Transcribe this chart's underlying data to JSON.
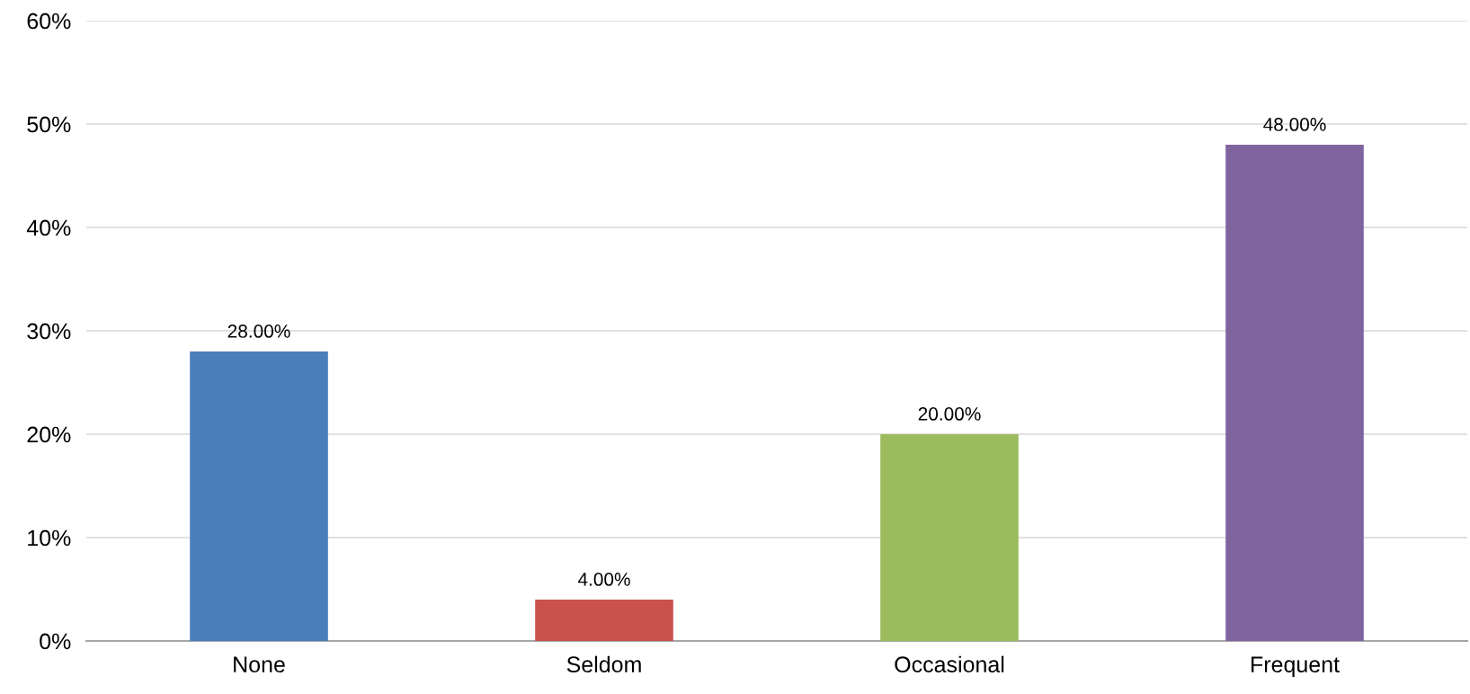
{
  "chart_data": {
    "type": "bar",
    "categories": [
      "None",
      "Seldom",
      "Occasional",
      "Frequent"
    ],
    "values": [
      28,
      4,
      20,
      48
    ],
    "colors": [
      "#4a7ebb",
      "#c9514e",
      "#9bbb5c",
      "#8064a0"
    ],
    "value_labels": [
      "28.00%",
      "4.00%",
      "20.00%",
      "48.00%"
    ],
    "ylim": [
      0,
      60
    ],
    "yticks": [
      {
        "value": 0,
        "label": "0%"
      },
      {
        "value": 10,
        "label": "10%"
      },
      {
        "value": 20,
        "label": "20%"
      },
      {
        "value": 30,
        "label": "30%"
      },
      {
        "value": 40,
        "label": "40%"
      },
      {
        "value": 50,
        "label": "50%"
      },
      {
        "value": 60,
        "label": "60%"
      }
    ],
    "grid": "y",
    "legend": false
  }
}
